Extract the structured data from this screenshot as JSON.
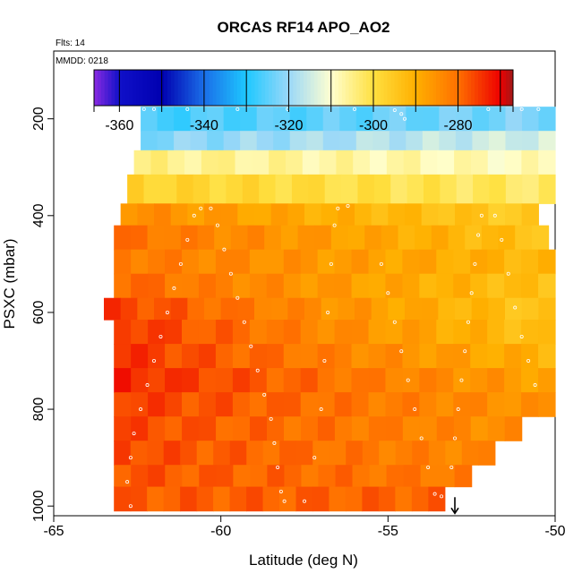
{
  "chart_data": {
    "type": "heatmap",
    "title": "ORCAS RF14 APO_AO2",
    "annotations": [
      "Flts: 14",
      "MMDD: 0218"
    ],
    "xlabel": "Latitude (deg N)",
    "ylabel": "PSXC (mbar)",
    "xlim": [
      -65,
      -50
    ],
    "ylim": [
      1020,
      60
    ],
    "x_ticks": [
      -65,
      -60,
      -55,
      -50
    ],
    "x_tick_labels": [
      "-65",
      "-60",
      "-55",
      "-50"
    ],
    "y_ticks": [
      200,
      400,
      600,
      800,
      1000
    ],
    "y_tick_labels": [
      "200",
      "400",
      "600",
      "800",
      "1000"
    ],
    "colorbar": {
      "range": [
        -366,
        -267
      ],
      "bins": [
        -366,
        -360,
        -350,
        -340,
        -330,
        -320,
        -310,
        -300,
        -290,
        -280,
        -270,
        -267
      ],
      "ticks": [
        -360,
        -340,
        -320,
        -300,
        -280
      ],
      "tick_labels": [
        "-360",
        "-340",
        "-320",
        "-300",
        "-280"
      ],
      "colors": [
        [
          -366,
          "#8a2be2"
        ],
        [
          -360,
          "#1010c8"
        ],
        [
          -350,
          "#0000b0"
        ],
        [
          -340,
          "#1a6ee8"
        ],
        [
          -330,
          "#1ec8ff"
        ],
        [
          -320,
          "#9ad8f8"
        ],
        [
          -310,
          "#ffffd0"
        ],
        [
          -300,
          "#ffe040"
        ],
        [
          -290,
          "#ffb000"
        ],
        [
          -280,
          "#ff7000"
        ],
        [
          -270,
          "#ee0000"
        ],
        [
          -267,
          "#a01818"
        ]
      ]
    },
    "rows": [
      {
        "p_top": 175,
        "p_bot": 225,
        "x_start": -62.4,
        "x_end": -50,
        "v_left": -327,
        "v_right": -322
      },
      {
        "p_top": 225,
        "p_bot": 265,
        "x_start": -62.4,
        "x_end": -50,
        "v_left": -322,
        "v_right": -314
      },
      {
        "p_top": 265,
        "p_bot": 315,
        "x_start": -62.6,
        "x_end": -50,
        "v_left": -305,
        "v_right": -309
      },
      {
        "p_top": 315,
        "p_bot": 375,
        "x_start": -62.8,
        "x_end": -50,
        "v_left": -297,
        "v_right": -303
      },
      {
        "p_top": 375,
        "p_bot": 420,
        "x_start": -63.0,
        "x_end": -50.5,
        "v_left": -284,
        "v_right": -296
      },
      {
        "p_top": 420,
        "p_bot": 470,
        "x_start": -63.2,
        "x_end": -50.2,
        "v_left": -280,
        "v_right": -294
      },
      {
        "p_top": 470,
        "p_bot": 520,
        "x_start": -63.2,
        "x_end": -50,
        "v_left": -281,
        "v_right": -292
      },
      {
        "p_top": 520,
        "p_bot": 570,
        "x_start": -63.2,
        "x_end": -50,
        "v_left": -279,
        "v_right": -294
      },
      {
        "p_top": 570,
        "p_bot": 615,
        "x_start": -63.5,
        "x_end": -50,
        "v_left": -275,
        "v_right": -295
      },
      {
        "p_top": 615,
        "p_bot": 665,
        "x_start": -63.2,
        "x_end": -50,
        "v_left": -274,
        "v_right": -294
      },
      {
        "p_top": 665,
        "p_bot": 715,
        "x_start": -63.2,
        "x_end": -50,
        "v_left": -274,
        "v_right": -291
      },
      {
        "p_top": 715,
        "p_bot": 765,
        "x_start": -63.2,
        "x_end": -50,
        "v_left": -273,
        "v_right": -288
      },
      {
        "p_top": 765,
        "p_bot": 815,
        "x_start": -63.2,
        "x_end": -50,
        "v_left": -275,
        "v_right": -286
      },
      {
        "p_top": 815,
        "p_bot": 865,
        "x_start": -63.2,
        "x_end": -51,
        "v_left": -276,
        "v_right": -285
      },
      {
        "p_top": 865,
        "p_bot": 915,
        "x_start": -63.2,
        "x_end": -51.8,
        "v_left": -276,
        "v_right": -284
      },
      {
        "p_top": 915,
        "p_bot": 960,
        "x_start": -63.2,
        "x_end": -52.5,
        "v_left": -277,
        "v_right": -282
      },
      {
        "p_top": 960,
        "p_bot": 1010,
        "x_start": -63.2,
        "x_end": -53.3,
        "v_left": -278,
        "v_right": -279
      }
    ],
    "flight_track": [
      [
        -62.3,
        180
      ],
      [
        -62.0,
        180
      ],
      [
        -61.0,
        180
      ],
      [
        -59.5,
        180
      ],
      [
        -58.0,
        180
      ],
      [
        -56.0,
        180
      ],
      [
        -54.8,
        182
      ],
      [
        -54.6,
        190
      ],
      [
        -54.5,
        200
      ],
      [
        -52.0,
        180
      ],
      [
        -51.0,
        180
      ],
      [
        -50.5,
        180
      ],
      [
        -62.7,
        1000
      ],
      [
        -62.8,
        950
      ],
      [
        -62.7,
        900
      ],
      [
        -62.6,
        850
      ],
      [
        -62.4,
        800
      ],
      [
        -62.2,
        750
      ],
      [
        -62.0,
        700
      ],
      [
        -61.8,
        650
      ],
      [
        -61.6,
        600
      ],
      [
        -61.4,
        550
      ],
      [
        -61.2,
        500
      ],
      [
        -61.0,
        450
      ],
      [
        -60.8,
        400
      ],
      [
        -60.6,
        385
      ],
      [
        -60.3,
        385
      ],
      [
        -60.1,
        420
      ],
      [
        -59.9,
        470
      ],
      [
        -59.7,
        520
      ],
      [
        -59.5,
        570
      ],
      [
        -59.3,
        620
      ],
      [
        -59.1,
        670
      ],
      [
        -58.9,
        720
      ],
      [
        -58.7,
        770
      ],
      [
        -58.5,
        820
      ],
      [
        -58.4,
        870
      ],
      [
        -58.3,
        920
      ],
      [
        -58.2,
        970
      ],
      [
        -58.1,
        990
      ],
      [
        -57.5,
        990
      ],
      [
        -57.2,
        900
      ],
      [
        -57.0,
        800
      ],
      [
        -56.9,
        700
      ],
      [
        -56.8,
        600
      ],
      [
        -56.7,
        500
      ],
      [
        -56.6,
        420
      ],
      [
        -56.5,
        385
      ],
      [
        -56.2,
        380
      ],
      [
        -55.2,
        500
      ],
      [
        -55.0,
        560
      ],
      [
        -54.8,
        620
      ],
      [
        -54.6,
        680
      ],
      [
        -54.4,
        740
      ],
      [
        -54.2,
        800
      ],
      [
        -54.0,
        860
      ],
      [
        -53.8,
        920
      ],
      [
        -53.6,
        975
      ],
      [
        -53.4,
        980
      ],
      [
        -53.2,
        980
      ],
      [
        -53.1,
        920
      ],
      [
        -53.0,
        860
      ],
      [
        -52.9,
        800
      ],
      [
        -52.8,
        740
      ],
      [
        -52.7,
        680
      ],
      [
        -52.6,
        620
      ],
      [
        -52.5,
        560
      ],
      [
        -52.4,
        500
      ],
      [
        -52.3,
        440
      ],
      [
        -52.2,
        400
      ],
      [
        -51.8,
        400
      ],
      [
        -51.6,
        450
      ],
      [
        -51.4,
        520
      ],
      [
        -51.2,
        590
      ],
      [
        -51.0,
        650
      ],
      [
        -50.8,
        700
      ],
      [
        -50.6,
        750
      ]
    ],
    "marker": {
      "x": -53.0,
      "p": 1015
    }
  }
}
